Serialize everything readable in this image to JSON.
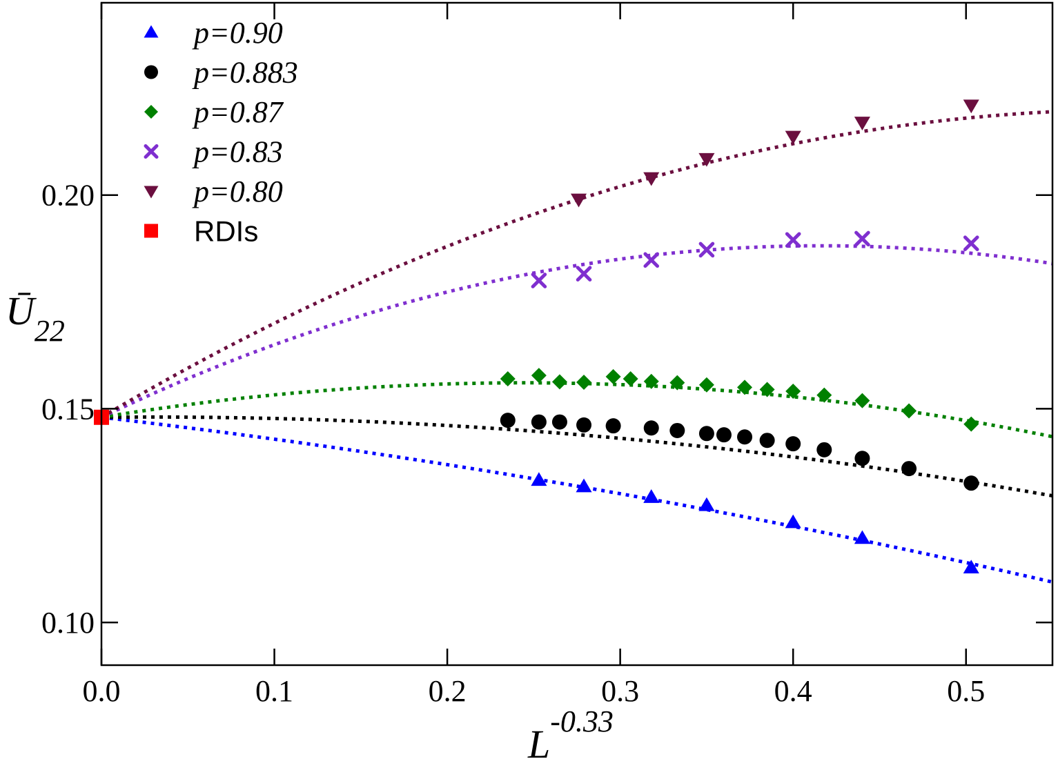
{
  "chart_data": {
    "type": "scatter",
    "xlabel": "L",
    "xlabel_sup": "-0.33",
    "ylabel": "Ū",
    "ylabel_sub": "22",
    "xlim": [
      0.0,
      0.55
    ],
    "ylim": [
      0.09,
      0.245
    ],
    "xticks": [
      "0.0",
      "0.1",
      "0.2",
      "0.3",
      "0.4",
      "0.5"
    ],
    "xtick_values": [
      0.0,
      0.1,
      0.2,
      0.3,
      0.4,
      0.5
    ],
    "yticks": [
      "0.10",
      "0.15",
      "0.20"
    ],
    "ytick_values": [
      0.1,
      0.15,
      0.2
    ],
    "grid": false,
    "legend_position": "top-left",
    "series": [
      {
        "name": "p=0.90",
        "marker": "triangle-up",
        "color": "#0000ff",
        "x": [
          0.253,
          0.279,
          0.318,
          0.35,
          0.4,
          0.44,
          0.503
        ],
        "y": [
          0.1333,
          0.1318,
          0.1293,
          0.1274,
          0.1234,
          0.1197,
          0.1128
        ],
        "fit": [
          0.0,
          0.0,
          0.0
        ],
        "fit_coeffs": [
          0.148,
          -0.047,
          -0.042
        ]
      },
      {
        "name": "p=0.883",
        "marker": "circle",
        "color": "#000000",
        "x": [
          0.235,
          0.253,
          0.265,
          0.279,
          0.296,
          0.318,
          0.333,
          0.35,
          0.36,
          0.372,
          0.385,
          0.4,
          0.418,
          0.44,
          0.467,
          0.503
        ],
        "y": [
          0.1473,
          0.1469,
          0.1469,
          0.1462,
          0.146,
          0.1455,
          0.1449,
          0.1442,
          0.1439,
          0.1434,
          0.1426,
          0.1418,
          0.1404,
          0.1384,
          0.136,
          0.1326
        ],
        "fit_coeffs": [
          0.148,
          0.004,
          -0.068
        ]
      },
      {
        "name": "p=0.87",
        "marker": "diamond",
        "color": "#008000",
        "x": [
          0.235,
          0.253,
          0.265,
          0.279,
          0.296,
          0.306,
          0.318,
          0.333,
          0.35,
          0.372,
          0.385,
          0.4,
          0.418,
          0.44,
          0.467,
          0.503
        ],
        "y": [
          0.157,
          0.1578,
          0.1563,
          0.1562,
          0.1575,
          0.157,
          0.1564,
          0.1561,
          0.1556,
          0.155,
          0.1545,
          0.1541,
          0.1532,
          0.1519,
          0.1495,
          0.1464
        ],
        "fit_coeffs": [
          0.148,
          0.066,
          -0.135
        ]
      },
      {
        "name": "p=0.83",
        "marker": "x",
        "color": "#7f2fcf",
        "x": [
          0.253,
          0.279,
          0.318,
          0.35,
          0.4,
          0.44,
          0.503
        ],
        "y": [
          0.18,
          0.1816,
          0.1848,
          0.1872,
          0.1895,
          0.1898,
          0.1887
        ],
        "fit_coeffs": [
          0.148,
          0.193,
          -0.232
        ]
      },
      {
        "name": "p=0.80",
        "marker": "triangle-down",
        "color": "#6b0f3f",
        "x": [
          0.276,
          0.318,
          0.35,
          0.4,
          0.44,
          0.503
        ],
        "y": [
          0.199,
          0.204,
          0.2085,
          0.2137,
          0.217,
          0.221
        ],
        "fit_coeffs": [
          0.148,
          0.24,
          -0.2
        ]
      },
      {
        "name": "RDIs",
        "marker": "square",
        "color": "#ff0000",
        "x": [
          0.0
        ],
        "y": [
          0.148
        ]
      }
    ]
  }
}
